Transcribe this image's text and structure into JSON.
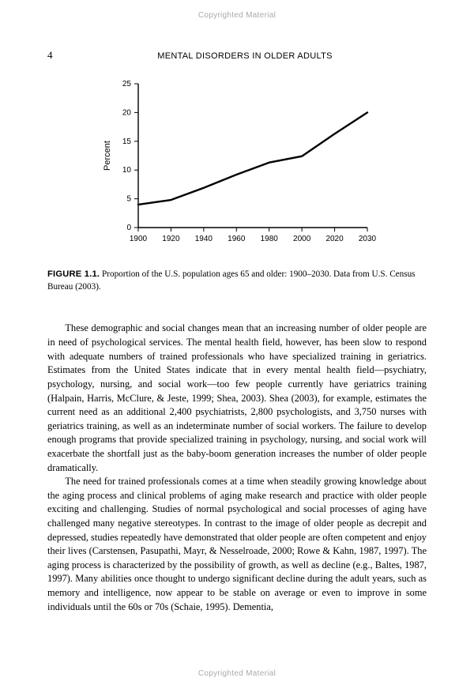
{
  "watermark": "Copyrighted Material",
  "page_number": "4",
  "running_head": "MENTAL DISORDERS IN OLDER ADULTS",
  "chart": {
    "type": "line",
    "ylabel": "Percent",
    "ylabel_fontsize": 11,
    "x_ticks": [
      "1900",
      "1920",
      "1940",
      "1960",
      "1980",
      "2000",
      "2020",
      "2030"
    ],
    "y_ticks": [
      0,
      5,
      10,
      15,
      20,
      25
    ],
    "ylim": [
      0,
      25
    ],
    "xlim_index": [
      0,
      7
    ],
    "points": [
      {
        "xi": 0,
        "y": 4.0
      },
      {
        "xi": 1,
        "y": 4.8
      },
      {
        "xi": 2,
        "y": 6.9
      },
      {
        "xi": 3,
        "y": 9.2
      },
      {
        "xi": 4,
        "y": 11.3
      },
      {
        "xi": 5,
        "y": 12.4
      },
      {
        "xi": 6,
        "y": 16.3
      },
      {
        "xi": 7,
        "y": 20.0
      }
    ],
    "line_color": "#000000",
    "line_width": 2.4,
    "axis_color": "#000000",
    "axis_width": 1.4,
    "tick_fontsize": 10,
    "background": "#ffffff"
  },
  "caption": {
    "label": "FIGURE 1.1.",
    "text": " Proportion of the U.S. population ages 65 and older: 1900–2030. Data from U.S. Census Bureau (2003)."
  },
  "paragraphs": [
    "These demographic and social changes mean that an increasing number of older people are in need of psychological services. The mental health field, however, has been slow to respond with adequate numbers of trained professionals who have specialized training in geriatrics. Estimates from the United States indicate that in every mental health field—psychiatry, psychology, nursing, and social work—too few people currently have geriatrics training (Halpain, Harris, McClure, & Jeste, 1999; Shea, 2003). Shea (2003), for example, estimates the current need as an additional 2,400 psychiatrists, 2,800 psychologists, and 3,750 nurses with geriatrics training, as well as an indeterminate number of social workers. The failure to develop enough programs that provide specialized training in psychology, nursing, and social work will exacerbate the shortfall just as the baby-boom generation increases the number of older people dramatically.",
    "The need for trained professionals comes at a time when steadily growing knowledge about the aging process and clinical problems of aging make research and practice with older people exciting and challenging. Studies of normal psychological and social processes of aging have challenged many negative stereotypes. In contrast to the image of older people as decrepit and depressed, studies repeatedly have demonstrated that older people are often competent and enjoy their lives (Carstensen, Pasupathi, Mayr, & Nesselroade, 2000; Rowe & Kahn, 1987, 1997). The aging process is characterized by the possibility of growth, as well as decline (e.g., Baltes, 1987, 1997). Many abilities once thought to undergo significant decline during the adult years, such as memory and intelligence, now appear to be stable on average or even to improve in some individuals until the 60s or 70s (Schaie, 1995). Dementia,"
  ]
}
